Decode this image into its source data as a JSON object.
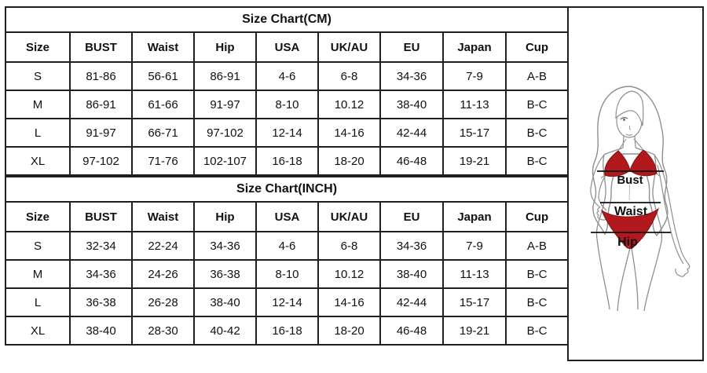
{
  "page": {
    "background": "#ffffff",
    "grid_line_color": "#1f1f1f",
    "text_color": "#111111"
  },
  "tables": [
    {
      "title": "Size Chart(CM)",
      "columns": [
        "Size",
        "BUST",
        "Waist",
        "Hip",
        "USA",
        "UK/AU",
        "EU",
        "Japan",
        "Cup"
      ],
      "rows": [
        [
          "S",
          "81-86",
          "56-61",
          "86-91",
          "4-6",
          "6-8",
          "34-36",
          "7-9",
          "A-B"
        ],
        [
          "M",
          "86-91",
          "61-66",
          "91-97",
          "8-10",
          "10.12",
          "38-40",
          "11-13",
          "B-C"
        ],
        [
          "L",
          "91-97",
          "66-71",
          "97-102",
          "12-14",
          "14-16",
          "42-44",
          "15-17",
          "B-C"
        ],
        [
          "XL",
          "97-102",
          "71-76",
          "102-107",
          "16-18",
          "18-20",
          "46-48",
          "19-21",
          "B-C"
        ]
      ]
    },
    {
      "title": "Size Chart(INCH)",
      "columns": [
        "Size",
        "BUST",
        "Waist",
        "Hip",
        "USA",
        "UK/AU",
        "EU",
        "Japan",
        "Cup"
      ],
      "rows": [
        [
          "S",
          "32-34",
          "22-24",
          "34-36",
          "4-6",
          "6-8",
          "34-36",
          "7-9",
          "A-B"
        ],
        [
          "M",
          "34-36",
          "24-26",
          "36-38",
          "8-10",
          "10.12",
          "38-40",
          "11-13",
          "B-C"
        ],
        [
          "L",
          "36-38",
          "26-28",
          "38-40",
          "12-14",
          "14-16",
          "42-44",
          "15-17",
          "B-C"
        ],
        [
          "XL",
          "38-40",
          "28-30",
          "40-42",
          "16-18",
          "18-20",
          "46-48",
          "19-21",
          "B-C"
        ]
      ]
    }
  ],
  "figure": {
    "labels": {
      "bust": "Bust",
      "waist": "Waist",
      "hip": "Hip"
    },
    "bikini_color": "#b2191d",
    "outline_color": "#8f8f8f",
    "measure_line_color": "#111111"
  }
}
